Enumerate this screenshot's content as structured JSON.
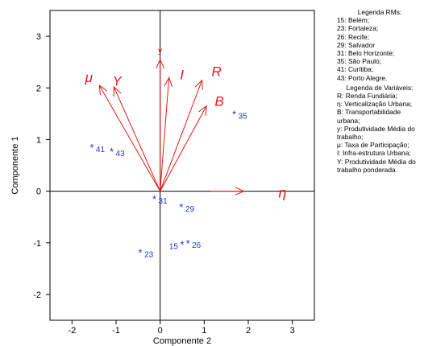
{
  "chart_data": {
    "type": "scatter",
    "title": "",
    "xlabel": "Componente 2",
    "ylabel": "Componente 1",
    "xlim": [
      -2.5,
      3.5
    ],
    "ylim": [
      -2.5,
      3.5
    ],
    "xticks": [
      "-2",
      "-1",
      "0",
      "1",
      "2",
      "3"
    ],
    "yticks": [
      "-2",
      "-1",
      "0",
      "1",
      "2",
      "3"
    ],
    "xtick_values": [
      -2,
      -1,
      0,
      1,
      2,
      3
    ],
    "ytick_values": [
      -2,
      -1,
      0,
      1,
      2,
      3
    ],
    "points": [
      {
        "label": "15",
        "x": 0.5,
        "y": -1.03
      },
      {
        "label": "23",
        "x": -0.45,
        "y": -1.18
      },
      {
        "label": "26",
        "x": 0.63,
        "y": -1.0
      },
      {
        "label": "29",
        "x": 0.48,
        "y": -0.3
      },
      {
        "label": "31",
        "x": -0.13,
        "y": -0.15
      },
      {
        "label": "35",
        "x": 1.68,
        "y": 1.5
      },
      {
        "label": "41",
        "x": -1.55,
        "y": 0.85
      },
      {
        "label": "43",
        "x": -1.1,
        "y": 0.77
      }
    ],
    "vectors": [
      {
        "label": "μ",
        "x": -1.38,
        "y": 2.05
      },
      {
        "label": "Y",
        "x": -1.05,
        "y": 2.02
      },
      {
        "label": "y",
        "x": 0.0,
        "y": 2.55
      },
      {
        "label": "I",
        "x": 0.2,
        "y": 2.2
      },
      {
        "label": "R",
        "x": 0.95,
        "y": 2.15
      },
      {
        "label": "B",
        "x": 1.05,
        "y": 1.65
      },
      {
        "label": "η",
        "x": 2.5,
        "y": 0.0
      }
    ],
    "vector_segment": {
      "x0": 1.15,
      "x1": 1.9,
      "y": 0.0
    },
    "grid": false,
    "legend_position": "right"
  },
  "legend": {
    "rms_title": "Legenda RMs:",
    "rms": [
      "15: Belém;",
      "23: Fortaleza;",
      "26: Recife;",
      "29: Salvador",
      "31: Belo Horizonte;",
      "35: São Paulo;",
      "41: Curitiba;",
      "43: Porto Alegre."
    ],
    "vars_title": "Legenda de Variáveis:",
    "vars": [
      "R: Renda Fundiária;",
      "η: Verticalização Urbana;",
      "B: Transportabilidade urbana;",
      "y: Produtividade Média do trabalho;",
      "μ: Taxa de Participação;",
      "I: Infra-estrutura Urbana;",
      "Y: Produtividade Média do trabalho ponderada."
    ]
  },
  "colors": {
    "points": "#2233dd",
    "vectors": "#e41818",
    "axes": "#000000"
  }
}
